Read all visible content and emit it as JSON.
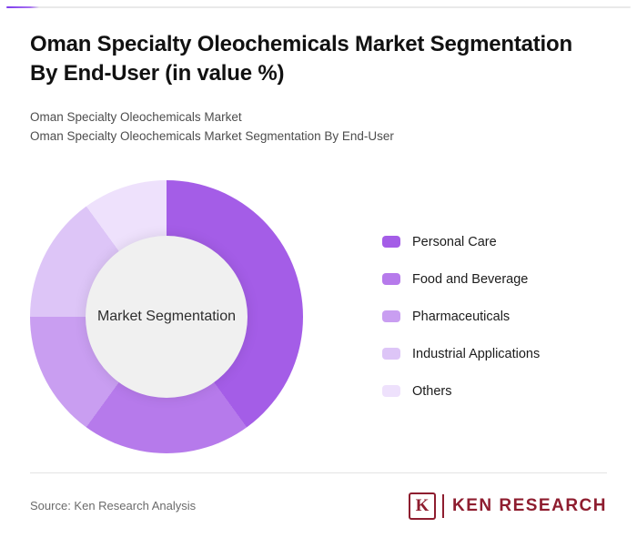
{
  "accent_color": "#7c3aed",
  "header": {
    "title_line1": "Oman Specialty Oleochemicals Market Segmentation",
    "title_line2": "By End-User (in value %)",
    "subtitle1": "Oman Specialty Oleochemicals Market",
    "subtitle2": "Oman Specialty Oleochemicals Market Segmentation By End-User"
  },
  "chart_data": {
    "type": "pie",
    "variant": "donut",
    "title": "Oman Specialty Oleochemicals Market Segmentation By End-User (in value %)",
    "center_label": "Market Segmentation",
    "unit": "percent (value %)",
    "legend_position": "right",
    "categories": [
      "Personal Care",
      "Food and Beverage",
      "Pharmaceuticals",
      "Industrial Applications",
      "Others"
    ],
    "values": [
      40,
      20,
      15,
      15,
      10
    ],
    "colors": [
      "#a45de7",
      "#b67aeb",
      "#c99ef1",
      "#ddc5f7",
      "#eee1fc"
    ],
    "hole_color": "#f0f0f0"
  },
  "footer": {
    "source": "Source: Ken Research Analysis",
    "logo_letter": "K",
    "logo_text": "KEN RESEARCH",
    "logo_color": "#8e1d2f"
  }
}
